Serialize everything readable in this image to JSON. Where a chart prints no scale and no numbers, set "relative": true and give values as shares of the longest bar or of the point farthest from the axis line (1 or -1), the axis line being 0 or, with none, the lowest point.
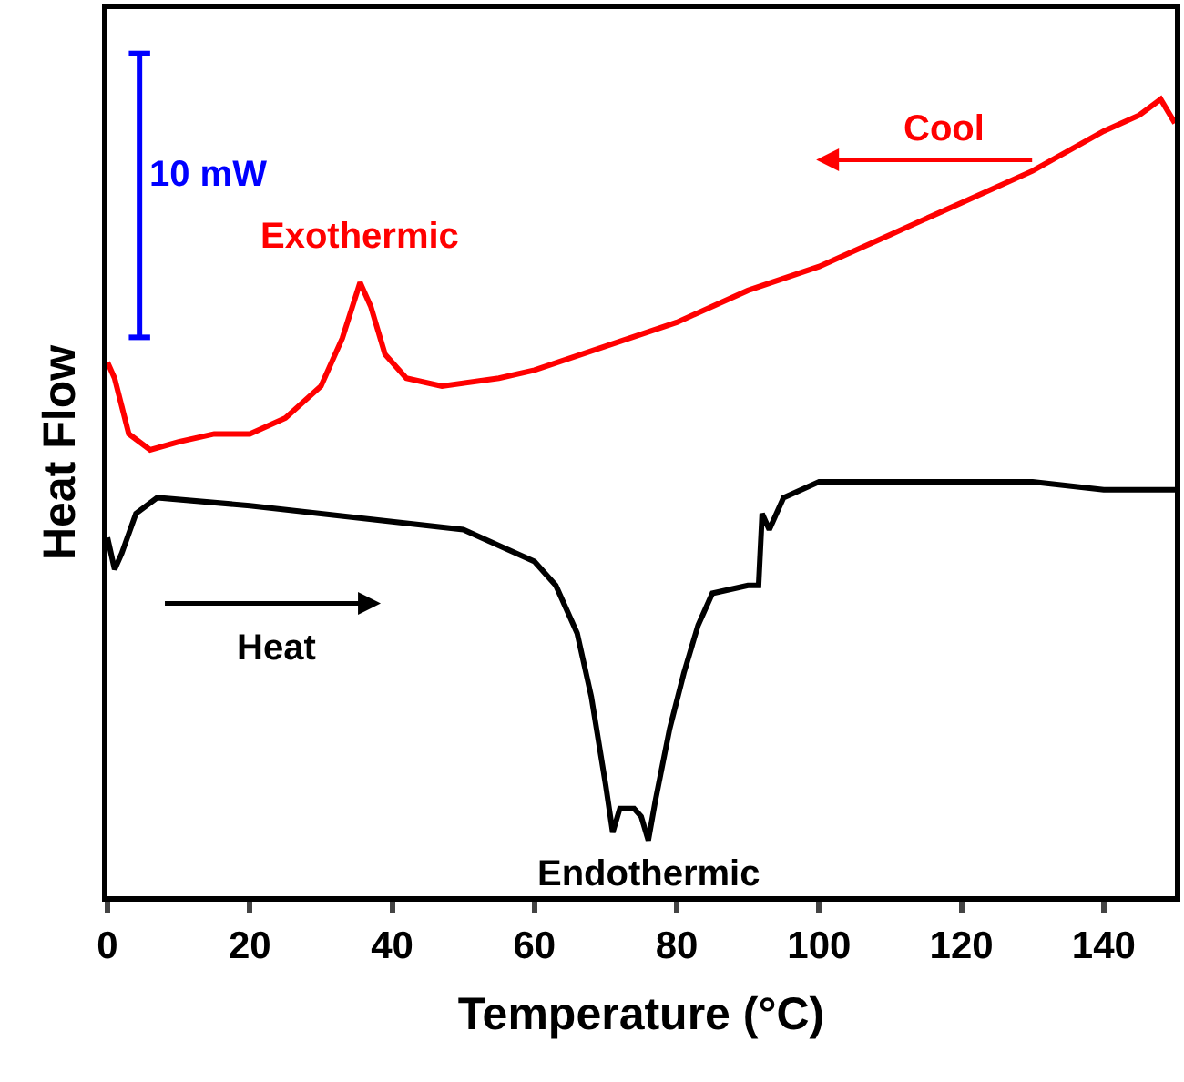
{
  "chart_data": {
    "type": "line",
    "relative": true,
    "xlabel": "Temperature (°C)",
    "ylabel": "Heat Flow",
    "xlim": [
      0,
      150
    ],
    "xticks": [
      0,
      20,
      40,
      60,
      80,
      100,
      120,
      140
    ],
    "marker": "none",
    "line_style": "solid",
    "series": [
      {
        "color": "#ff0000",
        "x": [
          0,
          1,
          3,
          6,
          10,
          15,
          20,
          25,
          30,
          33,
          35.5,
          37,
          39,
          42,
          47,
          55,
          60,
          70,
          80,
          90,
          100,
          110,
          120,
          130,
          140,
          145,
          148,
          150
        ],
        "values": [
          0.67,
          0.65,
          0.58,
          0.56,
          0.57,
          0.58,
          0.58,
          0.6,
          0.64,
          0.7,
          0.77,
          0.74,
          0.68,
          0.65,
          0.64,
          0.65,
          0.66,
          0.69,
          0.72,
          0.76,
          0.79,
          0.83,
          0.87,
          0.91,
          0.96,
          0.98,
          1.0,
          0.97
        ]
      },
      {
        "color": "#000000",
        "x": [
          0,
          1,
          2,
          4,
          7,
          20,
          40,
          50,
          55,
          60,
          63,
          66,
          68,
          70,
          71,
          72,
          74,
          75,
          76,
          77,
          79,
          81,
          83,
          85,
          90,
          91.5,
          92,
          93,
          95,
          100,
          110,
          120,
          130,
          140,
          150
        ],
        "values": [
          0.45,
          0.41,
          0.43,
          0.48,
          0.5,
          0.49,
          0.47,
          0.46,
          0.44,
          0.42,
          0.39,
          0.33,
          0.25,
          0.14,
          0.08,
          0.11,
          0.11,
          0.1,
          0.07,
          0.12,
          0.21,
          0.28,
          0.34,
          0.38,
          0.39,
          0.39,
          0.48,
          0.46,
          0.5,
          0.52,
          0.52,
          0.52,
          0.52,
          0.51,
          0.51
        ]
      }
    ],
    "annotations": [
      {
        "text": "Exothermic",
        "x": 35.5,
        "y": 0.77
      },
      {
        "text": "Endothermic",
        "x": 76,
        "y": 0.07
      },
      "Cool",
      "Heat",
      "10 mW"
    ]
  }
}
